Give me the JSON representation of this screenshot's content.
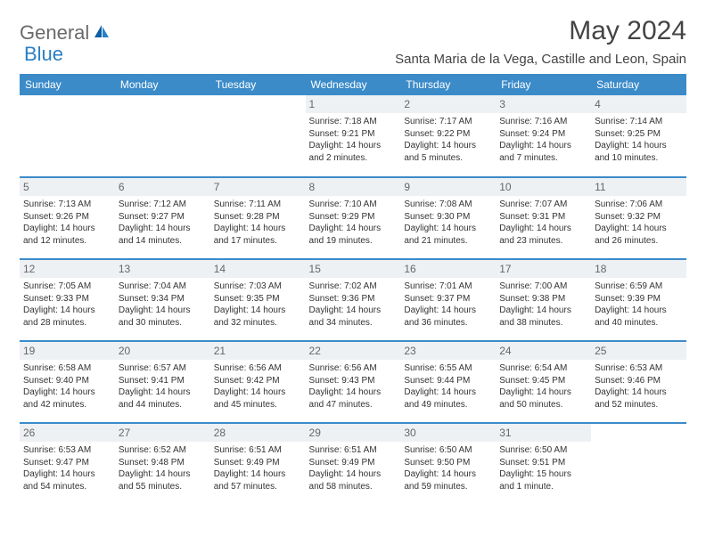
{
  "brand": {
    "part1": "General",
    "part2": "Blue"
  },
  "title": "May 2024",
  "location": "Santa Maria de la Vega, Castille and Leon, Spain",
  "colors": {
    "header_bg": "#3b8bc9",
    "header_text": "#ffffff",
    "daynum_bg": "#eef1f3",
    "row_divider": "#3b8bc9",
    "text": "#333333",
    "brand_gray": "#6a6a6a",
    "brand_blue": "#2a7fc4"
  },
  "day_headers": [
    "Sunday",
    "Monday",
    "Tuesday",
    "Wednesday",
    "Thursday",
    "Friday",
    "Saturday"
  ],
  "weeks": [
    [
      null,
      null,
      null,
      {
        "n": "1",
        "sr": "7:18 AM",
        "ss": "9:21 PM",
        "dl": "14 hours and 2 minutes."
      },
      {
        "n": "2",
        "sr": "7:17 AM",
        "ss": "9:22 PM",
        "dl": "14 hours and 5 minutes."
      },
      {
        "n": "3",
        "sr": "7:16 AM",
        "ss": "9:24 PM",
        "dl": "14 hours and 7 minutes."
      },
      {
        "n": "4",
        "sr": "7:14 AM",
        "ss": "9:25 PM",
        "dl": "14 hours and 10 minutes."
      }
    ],
    [
      {
        "n": "5",
        "sr": "7:13 AM",
        "ss": "9:26 PM",
        "dl": "14 hours and 12 minutes."
      },
      {
        "n": "6",
        "sr": "7:12 AM",
        "ss": "9:27 PM",
        "dl": "14 hours and 14 minutes."
      },
      {
        "n": "7",
        "sr": "7:11 AM",
        "ss": "9:28 PM",
        "dl": "14 hours and 17 minutes."
      },
      {
        "n": "8",
        "sr": "7:10 AM",
        "ss": "9:29 PM",
        "dl": "14 hours and 19 minutes."
      },
      {
        "n": "9",
        "sr": "7:08 AM",
        "ss": "9:30 PM",
        "dl": "14 hours and 21 minutes."
      },
      {
        "n": "10",
        "sr": "7:07 AM",
        "ss": "9:31 PM",
        "dl": "14 hours and 23 minutes."
      },
      {
        "n": "11",
        "sr": "7:06 AM",
        "ss": "9:32 PM",
        "dl": "14 hours and 26 minutes."
      }
    ],
    [
      {
        "n": "12",
        "sr": "7:05 AM",
        "ss": "9:33 PM",
        "dl": "14 hours and 28 minutes."
      },
      {
        "n": "13",
        "sr": "7:04 AM",
        "ss": "9:34 PM",
        "dl": "14 hours and 30 minutes."
      },
      {
        "n": "14",
        "sr": "7:03 AM",
        "ss": "9:35 PM",
        "dl": "14 hours and 32 minutes."
      },
      {
        "n": "15",
        "sr": "7:02 AM",
        "ss": "9:36 PM",
        "dl": "14 hours and 34 minutes."
      },
      {
        "n": "16",
        "sr": "7:01 AM",
        "ss": "9:37 PM",
        "dl": "14 hours and 36 minutes."
      },
      {
        "n": "17",
        "sr": "7:00 AM",
        "ss": "9:38 PM",
        "dl": "14 hours and 38 minutes."
      },
      {
        "n": "18",
        "sr": "6:59 AM",
        "ss": "9:39 PM",
        "dl": "14 hours and 40 minutes."
      }
    ],
    [
      {
        "n": "19",
        "sr": "6:58 AM",
        "ss": "9:40 PM",
        "dl": "14 hours and 42 minutes."
      },
      {
        "n": "20",
        "sr": "6:57 AM",
        "ss": "9:41 PM",
        "dl": "14 hours and 44 minutes."
      },
      {
        "n": "21",
        "sr": "6:56 AM",
        "ss": "9:42 PM",
        "dl": "14 hours and 45 minutes."
      },
      {
        "n": "22",
        "sr": "6:56 AM",
        "ss": "9:43 PM",
        "dl": "14 hours and 47 minutes."
      },
      {
        "n": "23",
        "sr": "6:55 AM",
        "ss": "9:44 PM",
        "dl": "14 hours and 49 minutes."
      },
      {
        "n": "24",
        "sr": "6:54 AM",
        "ss": "9:45 PM",
        "dl": "14 hours and 50 minutes."
      },
      {
        "n": "25",
        "sr": "6:53 AM",
        "ss": "9:46 PM",
        "dl": "14 hours and 52 minutes."
      }
    ],
    [
      {
        "n": "26",
        "sr": "6:53 AM",
        "ss": "9:47 PM",
        "dl": "14 hours and 54 minutes."
      },
      {
        "n": "27",
        "sr": "6:52 AM",
        "ss": "9:48 PM",
        "dl": "14 hours and 55 minutes."
      },
      {
        "n": "28",
        "sr": "6:51 AM",
        "ss": "9:49 PM",
        "dl": "14 hours and 57 minutes."
      },
      {
        "n": "29",
        "sr": "6:51 AM",
        "ss": "9:49 PM",
        "dl": "14 hours and 58 minutes."
      },
      {
        "n": "30",
        "sr": "6:50 AM",
        "ss": "9:50 PM",
        "dl": "14 hours and 59 minutes."
      },
      {
        "n": "31",
        "sr": "6:50 AM",
        "ss": "9:51 PM",
        "dl": "15 hours and 1 minute."
      },
      null
    ]
  ],
  "labels": {
    "sunrise": "Sunrise: ",
    "sunset": "Sunset: ",
    "daylight": "Daylight: "
  }
}
